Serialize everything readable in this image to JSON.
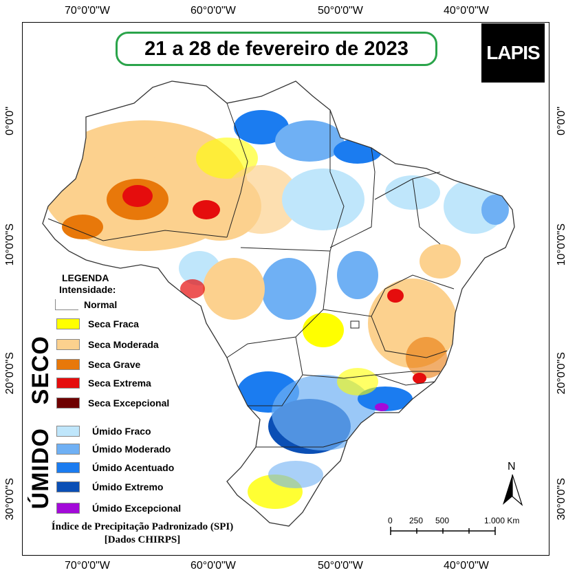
{
  "map": {
    "title": "21 a 28 de fevereiro de 2023",
    "logo_text": "LAPIS",
    "coords": {
      "top": [
        "70°0'0\"W",
        "60°0'0\"W",
        "50°0'0\"W",
        "40°0'0\"W"
      ],
      "bottom": [
        "70°0'0\"W",
        "60°0'0\"W",
        "50°0'0\"W",
        "40°0'0\"W"
      ],
      "left": [
        "0°0'0\"",
        "10°0'0\"S",
        "20°0'0\"S",
        "30°0'0\"S"
      ],
      "right": [
        "0°0'0\"",
        "10°0'0\"S",
        "20°0'0\"S",
        "30°0'0\"S"
      ]
    },
    "legend": {
      "title": "LEGENDA",
      "subtitle": "Intensidade:",
      "normal": {
        "label": "Normal",
        "color": "#ffffff"
      },
      "dry_label": "SECO",
      "wet_label": "ÚMIDO",
      "dry": [
        {
          "label": "Seca Fraca",
          "color": "#ffff00"
        },
        {
          "label": "Seca Moderada",
          "color": "#fcd18e"
        },
        {
          "label": "Seca Grave",
          "color": "#e8780a"
        },
        {
          "label": "Seca Extrema",
          "color": "#e50d0d"
        },
        {
          "label": "Seca Excepcional",
          "color": "#6e0000"
        }
      ],
      "wet": [
        {
          "label": "Úmido Fraco",
          "color": "#bfe6fb"
        },
        {
          "label": "Úmido Moderado",
          "color": "#6fb0f4"
        },
        {
          "label": "Úmido Acentuado",
          "color": "#1b7cf0"
        },
        {
          "label": "Úmido Extremo",
          "color": "#0b4fb5"
        },
        {
          "label": "Úmido Excepcional",
          "color": "#a30ad9"
        }
      ]
    },
    "source_line1": "Índice de Precipitação Padronizado (SPI)",
    "source_line2": "[Dados CHIRPS]",
    "scale_labels": [
      "0",
      "250",
      "500",
      "1.000 Km"
    ],
    "north_label": "N"
  }
}
